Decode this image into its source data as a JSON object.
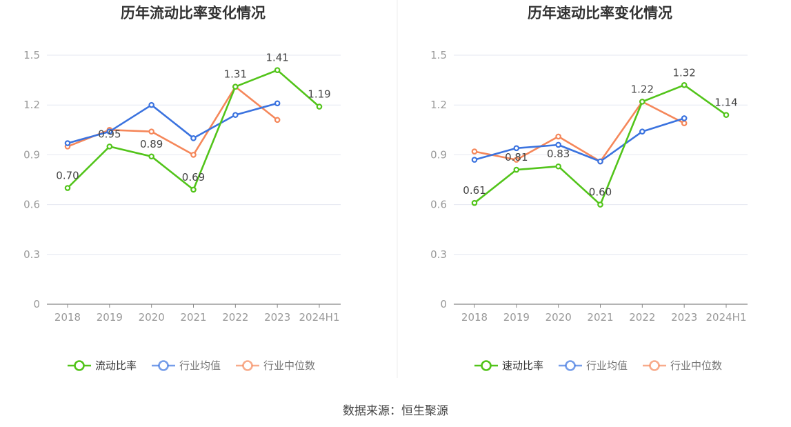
{
  "source_text": "数据来源：恒生聚源",
  "colors": {
    "primary": "#52c41a",
    "industry_avg": "#3b73df",
    "industry_median": "#f5875a",
    "grid": "#e4e7f1",
    "axis": "#888888",
    "tick_text": "#999999"
  },
  "chart_data": [
    {
      "type": "line",
      "title": "历年流动比率变化情况",
      "categories": [
        "2018",
        "2019",
        "2020",
        "2021",
        "2022",
        "2023",
        "2024H1"
      ],
      "yticks": [
        "0",
        "0.3",
        "0.6",
        "0.9",
        "1.2",
        "1.5"
      ],
      "ylim": [
        0,
        1.5
      ],
      "grid": true,
      "legend_position": "bottom",
      "series": [
        {
          "name": "流动比率",
          "role": "primary",
          "values": [
            0.7,
            0.95,
            0.89,
            0.69,
            1.31,
            1.41,
            1.19
          ],
          "labels": [
            "0.70",
            "0.95",
            "0.89",
            "0.69",
            "1.31",
            "1.41",
            "1.19"
          ]
        },
        {
          "name": "行业均值",
          "role": "industry_avg",
          "values": [
            0.97,
            1.04,
            1.2,
            1.0,
            1.14,
            1.21,
            null
          ]
        },
        {
          "name": "行业中位数",
          "role": "industry_median",
          "values": [
            0.95,
            1.05,
            1.04,
            0.9,
            1.31,
            1.11,
            null
          ]
        }
      ]
    },
    {
      "type": "line",
      "title": "历年速动比率变化情况",
      "categories": [
        "2018",
        "2019",
        "2020",
        "2021",
        "2022",
        "2023",
        "2024H1"
      ],
      "yticks": [
        "0",
        "0.3",
        "0.6",
        "0.9",
        "1.2",
        "1.5"
      ],
      "ylim": [
        0,
        1.5
      ],
      "grid": true,
      "legend_position": "bottom",
      "series": [
        {
          "name": "速动比率",
          "role": "primary",
          "values": [
            0.61,
            0.81,
            0.83,
            0.6,
            1.22,
            1.32,
            1.14
          ],
          "labels": [
            "0.61",
            "0.81",
            "0.83",
            "0.60",
            "1.22",
            "1.32",
            "1.14"
          ]
        },
        {
          "name": "行业均值",
          "role": "industry_avg",
          "values": [
            0.87,
            0.94,
            0.96,
            0.86,
            1.04,
            1.12,
            null
          ]
        },
        {
          "name": "行业中位数",
          "role": "industry_median",
          "values": [
            0.92,
            0.87,
            1.01,
            0.86,
            1.22,
            1.09,
            null
          ]
        }
      ]
    }
  ]
}
